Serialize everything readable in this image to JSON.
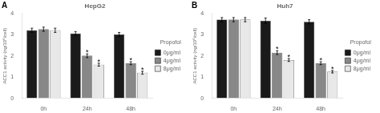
{
  "chart_data": [
    {
      "type": "bar",
      "title": "HepG2",
      "panel_label": "A",
      "categories": [
        "0h",
        "24h",
        "48h"
      ],
      "series": [
        {
          "name": "0μg/ml",
          "color": "#1a1a1a",
          "values": [
            3.2,
            3.05,
            3.0
          ],
          "errors": [
            0.1,
            0.09,
            0.1
          ]
        },
        {
          "name": "4μg/ml",
          "color": "#888888",
          "values": [
            3.25,
            2.0,
            1.65
          ],
          "errors": [
            0.1,
            0.09,
            0.07
          ]
        },
        {
          "name": "8μg/ml",
          "color": "#e8e8e8",
          "values": [
            3.2,
            1.58,
            1.2
          ],
          "errors": [
            0.1,
            0.07,
            0.07
          ]
        }
      ],
      "ylim": [
        0,
        4
      ],
      "yticks": [
        0,
        1,
        2,
        3,
        4
      ],
      "ylabel": "ACC1 activity (ng/10⁶/cell)",
      "legend_title": "Propofol",
      "legend": "right",
      "grid": false,
      "annotations": [
        {
          "category": "24h",
          "series": "4μg/ml",
          "text": "*"
        },
        {
          "category": "24h",
          "series": "8μg/ml",
          "text": "*"
        },
        {
          "category": "48h",
          "series": "4μg/ml",
          "text": "*"
        },
        {
          "category": "48h",
          "series": "8μg/ml",
          "text": "*"
        }
      ]
    },
    {
      "type": "bar",
      "title": "Huh7",
      "panel_label": "B",
      "categories": [
        "0h",
        "24h",
        "48h"
      ],
      "series": [
        {
          "name": "0μg/ml",
          "color": "#1a1a1a",
          "values": [
            3.7,
            3.65,
            3.6
          ],
          "errors": [
            0.1,
            0.13,
            0.1
          ]
        },
        {
          "name": "4μg/ml",
          "color": "#888888",
          "values": [
            3.7,
            2.15,
            1.65
          ],
          "errors": [
            0.1,
            0.09,
            0.07
          ]
        },
        {
          "name": "8μg/ml",
          "color": "#e8e8e8",
          "values": [
            3.7,
            1.8,
            1.25
          ],
          "errors": [
            0.1,
            0.07,
            0.06
          ]
        }
      ],
      "ylim": [
        0,
        4
      ],
      "yticks": [
        0,
        1,
        2,
        3,
        4
      ],
      "ylabel": "ACC1 activity (ng/10⁶/cell)",
      "legend_title": "Propofol",
      "legend": "right",
      "grid": false,
      "annotations": [
        {
          "category": "24h",
          "series": "4μg/ml",
          "text": "*"
        },
        {
          "category": "24h",
          "series": "8μg/ml",
          "text": "*"
        },
        {
          "category": "48h",
          "series": "4μg/ml",
          "text": "*"
        },
        {
          "category": "48h",
          "series": "8μg/ml",
          "text": "*"
        }
      ]
    }
  ]
}
